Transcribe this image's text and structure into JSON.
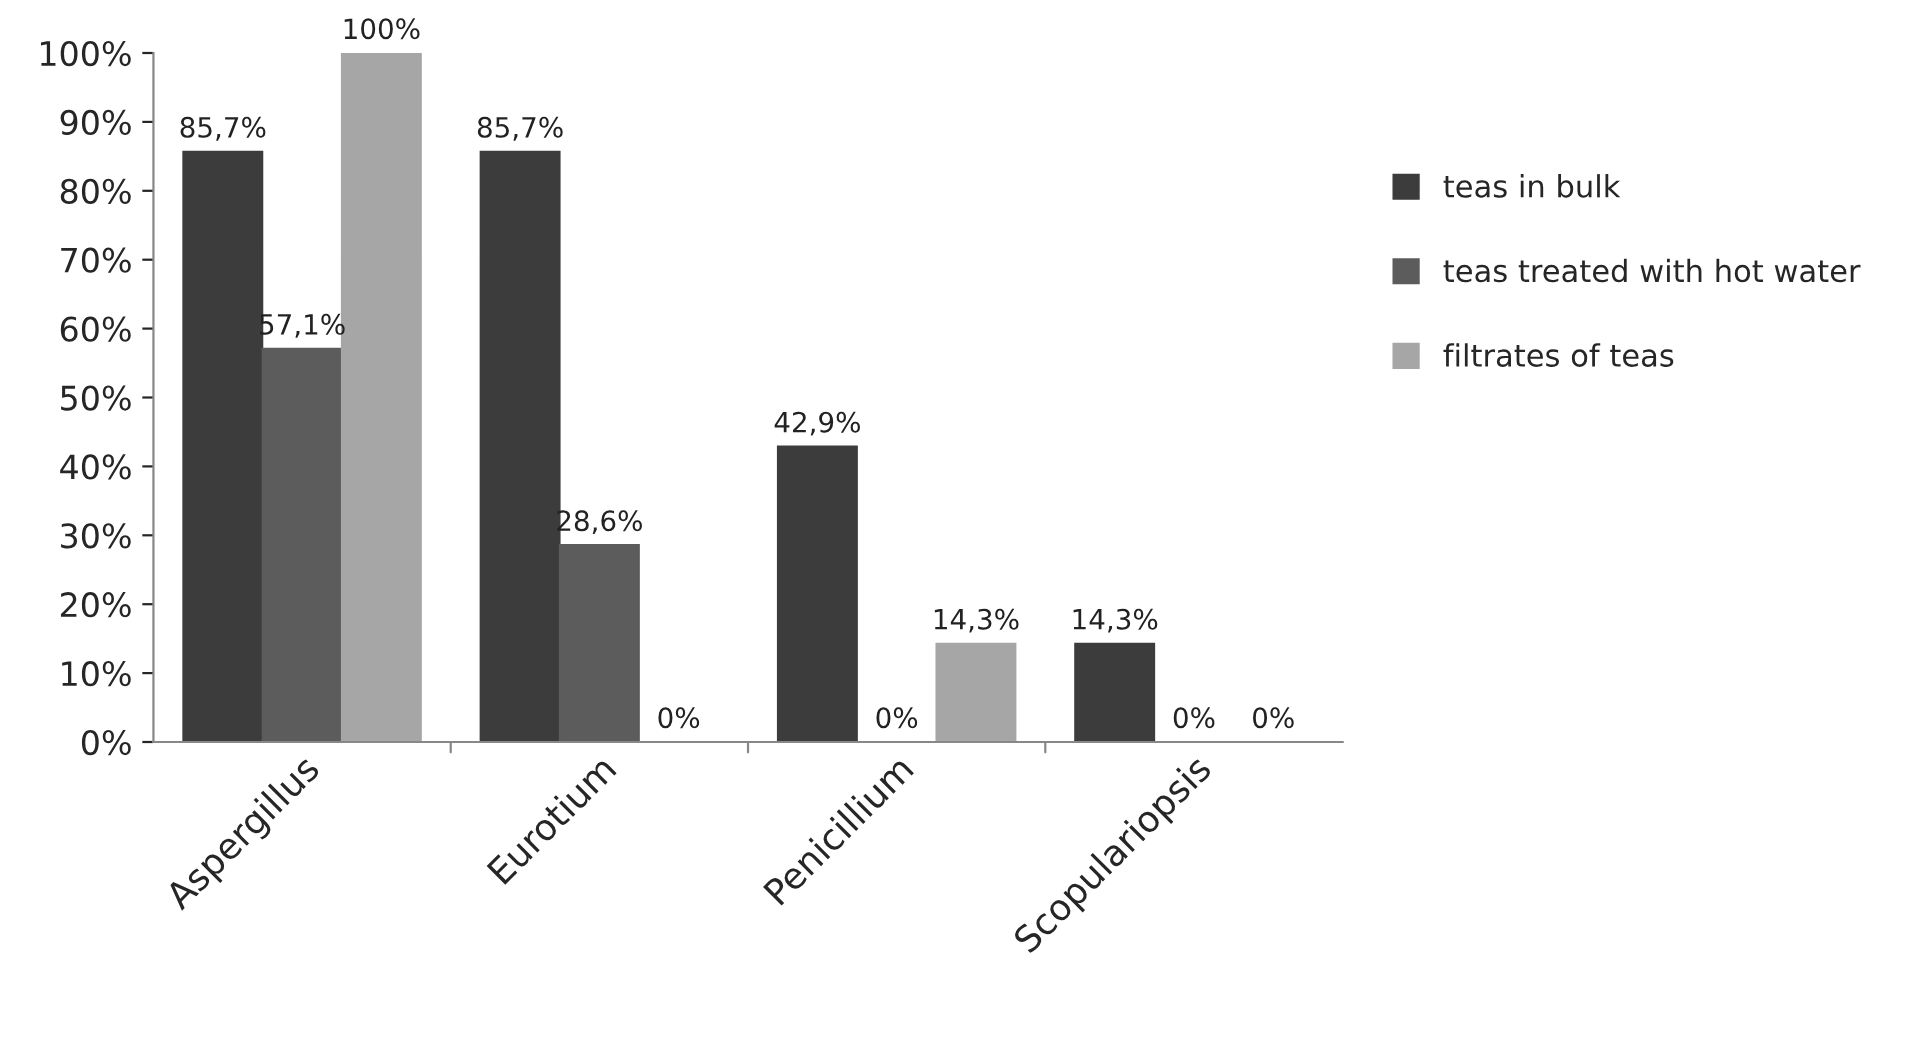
{
  "chart_data": {
    "type": "bar",
    "categories": [
      "Aspergillus",
      "Eurotium",
      "Penicillium",
      "Scopulariopsis"
    ],
    "series": [
      {
        "name": "teas in bulk",
        "color": "#3c3c3c",
        "values": [
          85.7,
          85.7,
          42.9,
          14.3
        ],
        "value_labels": [
          "85,7%",
          "85,7%",
          "42,9%",
          "14,3%"
        ]
      },
      {
        "name": "teas treated with hot water",
        "color": "#5c5c5c",
        "values": [
          57.1,
          28.6,
          0,
          0
        ],
        "value_labels": [
          "57,1%",
          "28,6%",
          "0%",
          "0%"
        ]
      },
      {
        "name": "filtrates of teas",
        "color": "#a6a6a6",
        "values": [
          100,
          0,
          14.3,
          0
        ],
        "value_labels": [
          "100%",
          "0%",
          "14,3%",
          "0%"
        ]
      }
    ],
    "ylim": [
      0,
      100
    ],
    "yticks": [
      {
        "value": 0,
        "label": "0%"
      },
      {
        "value": 10,
        "label": "10%"
      },
      {
        "value": 20,
        "label": "20%"
      },
      {
        "value": 30,
        "label": "30%"
      },
      {
        "value": 40,
        "label": "40%"
      },
      {
        "value": 50,
        "label": "50%"
      },
      {
        "value": 60,
        "label": "60%"
      },
      {
        "value": 70,
        "label": "70%"
      },
      {
        "value": 80,
        "label": "80%"
      },
      {
        "value": 90,
        "label": "90%"
      },
      {
        "value": 100,
        "label": "100%"
      }
    ],
    "grid": false,
    "legend": "right"
  }
}
